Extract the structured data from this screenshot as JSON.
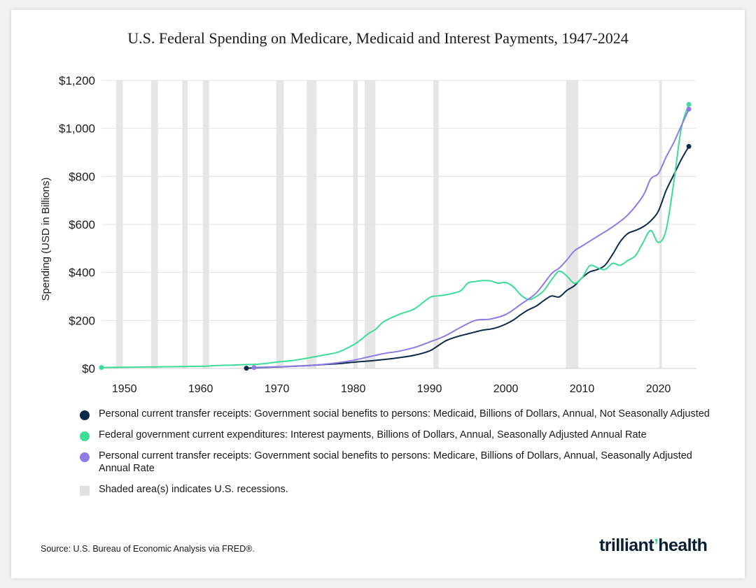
{
  "chart_data": {
    "type": "line",
    "title": "U.S. Federal Spending on Medicare, Medicaid and Interest Payments, 1947-2024",
    "xlabel": "",
    "ylabel": "Spending (USD in Billions)",
    "xlim": [
      1947,
      2025
    ],
    "ylim": [
      0,
      1200
    ],
    "x_ticks": [
      1950,
      1960,
      1970,
      1980,
      1990,
      2000,
      2010,
      2020
    ],
    "x_tick_labels": [
      "1950",
      "1960",
      "1970",
      "1980",
      "1990",
      "2000",
      "2010",
      "2020"
    ],
    "y_ticks": [
      0,
      200,
      400,
      600,
      800,
      1000,
      1200
    ],
    "y_tick_labels": [
      "$0",
      "$200",
      "$400",
      "$600",
      "$800",
      "$1,000",
      "$1,200"
    ],
    "grid": "horizontal",
    "recessions": [
      [
        1948.9,
        1949.8
      ],
      [
        1953.5,
        1954.4
      ],
      [
        1957.6,
        1958.3
      ],
      [
        1960.3,
        1961.1
      ],
      [
        1969.9,
        1970.9
      ],
      [
        1973.9,
        1975.2
      ],
      [
        1980.0,
        1980.6
      ],
      [
        1981.5,
        1982.9
      ],
      [
        1990.5,
        1991.2
      ],
      [
        2007.9,
        2009.5
      ],
      [
        2020.1,
        2020.4
      ]
    ],
    "series": [
      {
        "name": "Personal current transfer receipts: Government social benefits to persons: Medicaid, Billions of Dollars, Annual, Not Seasonally Adjusted",
        "color": "#0b2a4a",
        "x": [
          1966,
          1968,
          1970,
          1972,
          1974,
          1976,
          1978,
          1980,
          1982,
          1984,
          1986,
          1988,
          1990,
          1991,
          1992,
          1993,
          1994,
          1995,
          1996,
          1997,
          1998,
          1999,
          2000,
          2001,
          2002,
          2003,
          2004,
          2005,
          2006,
          2007,
          2008,
          2009,
          2010,
          2011,
          2012,
          2013,
          2014,
          2015,
          2016,
          2017,
          2018,
          2019,
          2020,
          2021,
          2022,
          2023,
          2024
        ],
        "y": [
          1,
          4,
          6,
          9,
          12,
          16,
          20,
          26,
          31,
          37,
          45,
          55,
          73,
          92,
          113,
          126,
          136,
          144,
          152,
          160,
          164,
          172,
          185,
          202,
          225,
          245,
          260,
          283,
          302,
          298,
          325,
          345,
          378,
          402,
          412,
          430,
          475,
          528,
          562,
          575,
          590,
          615,
          655,
          740,
          805,
          870,
          925
        ]
      },
      {
        "name": "Federal government current expenditures: Interest payments, Billions of Dollars, Annual, Seasonally Adjusted Annual Rate",
        "color": "#3ddc97",
        "x": [
          1947,
          1950,
          1955,
          1960,
          1962,
          1965,
          1968,
          1970,
          1972,
          1974,
          1976,
          1978,
          1980,
          1981,
          1982,
          1983,
          1984,
          1986,
          1988,
          1990,
          1991,
          1992,
          1994,
          1995,
          1996,
          1997,
          1998,
          1999,
          2000,
          2001,
          2002,
          2003,
          2004,
          2005,
          2006,
          2007,
          2008,
          2009,
          2010,
          2011,
          2012,
          2013,
          2014,
          2015,
          2016,
          2017,
          2018,
          2019,
          2020,
          2021,
          2022,
          2023,
          2024
        ],
        "y": [
          4,
          5,
          7,
          9,
          12,
          15,
          19,
          27,
          33,
          43,
          55,
          68,
          98,
          120,
          145,
          165,
          195,
          225,
          248,
          295,
          302,
          306,
          322,
          355,
          362,
          366,
          365,
          355,
          358,
          340,
          305,
          287,
          300,
          325,
          370,
          405,
          385,
          355,
          378,
          428,
          420,
          412,
          438,
          430,
          450,
          470,
          525,
          575,
          525,
          575,
          770,
          1000,
          1100
        ]
      },
      {
        "name": "Personal current transfer receipts: Government social benefits to persons: Medicare, Billions of Dollars, Annual, Seasonally Adjusted Annual Rate",
        "color": "#8f7ae6",
        "x": [
          1967,
          1970,
          1973,
          1976,
          1978,
          1980,
          1982,
          1984,
          1986,
          1988,
          1990,
          1992,
          1994,
          1996,
          1998,
          2000,
          2002,
          2004,
          2006,
          2007,
          2008,
          2009,
          2010,
          2012,
          2014,
          2016,
          2018,
          2019,
          2020,
          2021,
          2022,
          2023,
          2024
        ],
        "y": [
          4,
          7,
          10,
          17,
          24,
          34,
          48,
          62,
          72,
          87,
          110,
          135,
          170,
          200,
          206,
          225,
          268,
          315,
          395,
          418,
          452,
          490,
          510,
          550,
          590,
          640,
          720,
          790,
          812,
          880,
          940,
          1010,
          1080
        ]
      }
    ]
  },
  "legend": {
    "items": [
      {
        "label": "Personal current transfer receipts: Government social benefits to persons: Medicaid, Billions of Dollars, Annual, Not Seasonally Adjusted",
        "color": "#0b2a4a"
      },
      {
        "label": "Federal government current expenditures: Interest payments, Billions of Dollars, Annual, Seasonally Adjusted Annual Rate",
        "color": "#3ddc97"
      },
      {
        "label": "Personal current transfer receipts: Government social benefits to persons: Medicare, Billions of Dollars, Annual, Seasonally Adjusted Annual Rate",
        "color": "#8f7ae6"
      }
    ],
    "recession_label": "Shaded area(s) indicates U.S. recessions."
  },
  "footer": {
    "source": "Source: U.S. Bureau of Economic Analysis via FRED®.",
    "logo_left": "trilliant",
    "logo_right": "health"
  }
}
